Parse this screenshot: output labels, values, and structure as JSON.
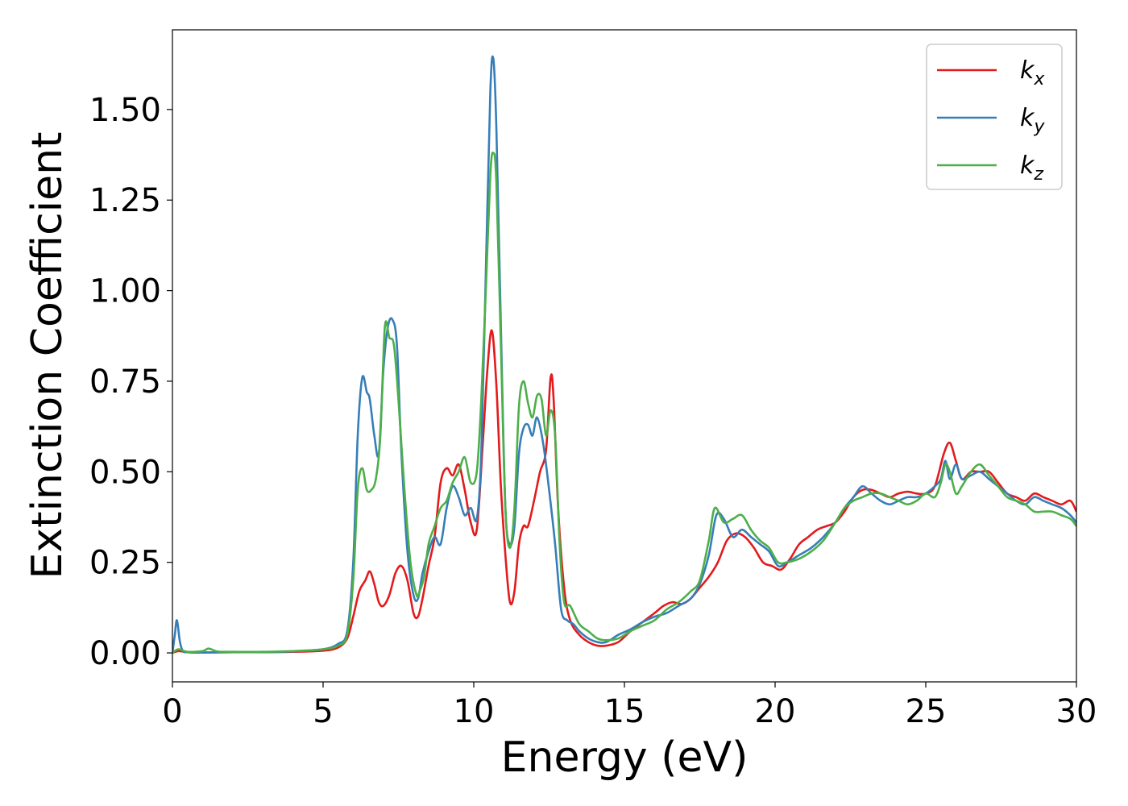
{
  "chart_data": {
    "type": "line",
    "xlabel": "Energy (eV)",
    "ylabel": "Extinction Coefficient",
    "xlim": [
      0,
      30
    ],
    "ylim": [
      -0.08,
      1.72
    ],
    "xticks": [
      "0",
      "5",
      "10",
      "15",
      "20",
      "25",
      "30"
    ],
    "yticks": [
      "0.00",
      "0.25",
      "0.50",
      "0.75",
      "1.00",
      "1.25",
      "1.50"
    ],
    "grid": false,
    "legend_position": "top-right",
    "series": [
      {
        "name": "kx",
        "legend_base": "k",
        "legend_sub": "x",
        "color": "#e41a1c",
        "x": [
          0,
          0.2,
          0.5,
          1,
          2,
          3,
          4,
          5,
          5.5,
          5.8,
          6.0,
          6.2,
          6.4,
          6.55,
          6.7,
          6.85,
          7.0,
          7.2,
          7.4,
          7.6,
          7.8,
          8.0,
          8.15,
          8.3,
          8.5,
          8.7,
          8.9,
          9.1,
          9.3,
          9.5,
          9.7,
          9.9,
          10.1,
          10.3,
          10.45,
          10.6,
          10.75,
          10.9,
          11.05,
          11.2,
          11.35,
          11.5,
          11.65,
          11.8,
          12.0,
          12.2,
          12.4,
          12.55,
          12.65,
          12.8,
          13.0,
          13.2,
          13.5,
          13.8,
          14.1,
          14.4,
          14.8,
          15.2,
          15.6,
          16.0,
          16.3,
          16.6,
          16.9,
          17.2,
          17.5,
          17.8,
          18.1,
          18.4,
          18.7,
          19.0,
          19.3,
          19.6,
          19.9,
          20.2,
          20.5,
          20.8,
          21.1,
          21.4,
          21.7,
          22.0,
          22.3,
          22.6,
          22.9,
          23.2,
          23.5,
          23.8,
          24.1,
          24.4,
          24.7,
          25.0,
          25.3,
          25.6,
          25.8,
          26.0,
          26.2,
          26.5,
          26.8,
          27.1,
          27.4,
          27.7,
          28.0,
          28.3,
          28.6,
          28.9,
          29.2,
          29.5,
          29.8,
          30
        ],
        "values": [
          0.0,
          0.005,
          0.002,
          0.001,
          0.002,
          0.002,
          0.003,
          0.006,
          0.015,
          0.04,
          0.1,
          0.17,
          0.2,
          0.225,
          0.19,
          0.14,
          0.13,
          0.16,
          0.22,
          0.24,
          0.2,
          0.11,
          0.1,
          0.15,
          0.24,
          0.32,
          0.47,
          0.51,
          0.49,
          0.52,
          0.45,
          0.36,
          0.34,
          0.58,
          0.78,
          0.89,
          0.74,
          0.46,
          0.27,
          0.14,
          0.17,
          0.3,
          0.35,
          0.35,
          0.42,
          0.5,
          0.56,
          0.76,
          0.7,
          0.4,
          0.18,
          0.09,
          0.05,
          0.03,
          0.02,
          0.02,
          0.03,
          0.06,
          0.085,
          0.11,
          0.13,
          0.14,
          0.135,
          0.15,
          0.18,
          0.21,
          0.25,
          0.31,
          0.33,
          0.32,
          0.29,
          0.25,
          0.24,
          0.23,
          0.26,
          0.3,
          0.32,
          0.34,
          0.35,
          0.36,
          0.39,
          0.43,
          0.45,
          0.45,
          0.44,
          0.43,
          0.44,
          0.445,
          0.44,
          0.44,
          0.46,
          0.55,
          0.58,
          0.53,
          0.48,
          0.5,
          0.5,
          0.5,
          0.47,
          0.44,
          0.43,
          0.42,
          0.44,
          0.43,
          0.42,
          0.41,
          0.42,
          0.39
        ]
      },
      {
        "name": "ky",
        "legend_base": "k",
        "legend_sub": "y",
        "color": "#377eb8",
        "x": [
          0,
          0.08,
          0.15,
          0.25,
          0.35,
          0.5,
          1,
          2,
          3,
          4,
          5,
          5.5,
          5.8,
          6.0,
          6.15,
          6.3,
          6.45,
          6.55,
          6.7,
          6.85,
          7.0,
          7.15,
          7.3,
          7.45,
          7.6,
          7.8,
          8.0,
          8.15,
          8.3,
          8.5,
          8.7,
          8.9,
          9.1,
          9.3,
          9.5,
          9.7,
          9.9,
          10.1,
          10.25,
          10.4,
          10.55,
          10.65,
          10.75,
          10.9,
          11.05,
          11.2,
          11.35,
          11.5,
          11.65,
          11.8,
          11.95,
          12.1,
          12.3,
          12.5,
          12.7,
          12.9,
          13.1,
          13.3,
          13.5,
          13.8,
          14.1,
          14.4,
          14.8,
          15.2,
          15.6,
          16.0,
          16.4,
          16.8,
          17.2,
          17.5,
          17.8,
          18.05,
          18.3,
          18.6,
          18.9,
          19.2,
          19.5,
          19.8,
          20.1,
          20.4,
          20.8,
          21.2,
          21.6,
          22.0,
          22.3,
          22.6,
          22.9,
          23.2,
          23.5,
          23.8,
          24.1,
          24.4,
          24.7,
          25.0,
          25.3,
          25.5,
          25.65,
          25.8,
          26.0,
          26.2,
          26.5,
          26.8,
          27.1,
          27.4,
          27.7,
          28.0,
          28.3,
          28.6,
          28.9,
          29.2,
          29.5,
          29.8,
          30
        ],
        "values": [
          0.0,
          0.05,
          0.09,
          0.03,
          0.005,
          0.002,
          0.001,
          0.002,
          0.002,
          0.004,
          0.01,
          0.025,
          0.06,
          0.25,
          0.6,
          0.76,
          0.72,
          0.7,
          0.6,
          0.55,
          0.78,
          0.9,
          0.92,
          0.85,
          0.55,
          0.28,
          0.16,
          0.15,
          0.22,
          0.28,
          0.32,
          0.3,
          0.4,
          0.46,
          0.43,
          0.38,
          0.4,
          0.37,
          0.55,
          1.05,
          1.55,
          1.64,
          1.45,
          0.9,
          0.4,
          0.3,
          0.35,
          0.55,
          0.62,
          0.63,
          0.6,
          0.65,
          0.58,
          0.45,
          0.3,
          0.12,
          0.09,
          0.08,
          0.06,
          0.04,
          0.03,
          0.03,
          0.05,
          0.065,
          0.085,
          0.1,
          0.11,
          0.13,
          0.15,
          0.19,
          0.27,
          0.38,
          0.37,
          0.32,
          0.34,
          0.32,
          0.3,
          0.28,
          0.24,
          0.25,
          0.27,
          0.29,
          0.32,
          0.36,
          0.4,
          0.43,
          0.46,
          0.44,
          0.42,
          0.41,
          0.42,
          0.43,
          0.43,
          0.44,
          0.46,
          0.48,
          0.53,
          0.48,
          0.52,
          0.48,
          0.49,
          0.5,
          0.48,
          0.46,
          0.44,
          0.42,
          0.41,
          0.43,
          0.42,
          0.41,
          0.4,
          0.38,
          0.36
        ]
      },
      {
        "name": "kz",
        "legend_base": "k",
        "legend_sub": "z",
        "color": "#4daf4a",
        "x": [
          0,
          0.2,
          0.5,
          1.0,
          1.2,
          1.5,
          2,
          3,
          4,
          5,
          5.5,
          5.8,
          6.0,
          6.15,
          6.3,
          6.45,
          6.6,
          6.75,
          6.9,
          7.05,
          7.2,
          7.35,
          7.5,
          7.7,
          7.9,
          8.1,
          8.2,
          8.35,
          8.5,
          8.7,
          8.9,
          9.1,
          9.3,
          9.5,
          9.7,
          9.9,
          10.1,
          10.25,
          10.4,
          10.55,
          10.65,
          10.75,
          10.9,
          11.05,
          11.2,
          11.35,
          11.5,
          11.65,
          11.8,
          11.95,
          12.1,
          12.25,
          12.4,
          12.55,
          12.7,
          12.85,
          13.0,
          13.2,
          13.5,
          13.8,
          14.1,
          14.4,
          14.8,
          15.2,
          15.6,
          16.0,
          16.4,
          16.8,
          17.2,
          17.5,
          17.8,
          18.0,
          18.3,
          18.6,
          18.9,
          19.2,
          19.5,
          19.8,
          20.1,
          20.4,
          20.8,
          21.2,
          21.6,
          22.0,
          22.3,
          22.6,
          22.9,
          23.2,
          23.5,
          23.8,
          24.1,
          24.4,
          24.7,
          25.0,
          25.3,
          25.5,
          25.65,
          25.8,
          26.0,
          26.2,
          26.5,
          26.8,
          27.1,
          27.4,
          27.7,
          28.0,
          28.3,
          28.6,
          28.9,
          29.2,
          29.5,
          29.8,
          30
        ],
        "values": [
          0.0,
          0.01,
          0.003,
          0.005,
          0.012,
          0.004,
          0.003,
          0.003,
          0.005,
          0.01,
          0.02,
          0.05,
          0.2,
          0.45,
          0.51,
          0.45,
          0.45,
          0.48,
          0.6,
          0.9,
          0.87,
          0.85,
          0.7,
          0.45,
          0.25,
          0.16,
          0.17,
          0.21,
          0.3,
          0.35,
          0.4,
          0.42,
          0.47,
          0.5,
          0.54,
          0.47,
          0.5,
          0.7,
          1.0,
          1.32,
          1.38,
          1.3,
          0.85,
          0.4,
          0.29,
          0.4,
          0.68,
          0.75,
          0.69,
          0.65,
          0.71,
          0.7,
          0.6,
          0.67,
          0.6,
          0.3,
          0.14,
          0.13,
          0.08,
          0.06,
          0.04,
          0.035,
          0.04,
          0.06,
          0.075,
          0.09,
          0.12,
          0.14,
          0.17,
          0.2,
          0.31,
          0.4,
          0.36,
          0.37,
          0.38,
          0.34,
          0.31,
          0.29,
          0.25,
          0.25,
          0.26,
          0.28,
          0.31,
          0.36,
          0.4,
          0.42,
          0.43,
          0.44,
          0.44,
          0.43,
          0.42,
          0.41,
          0.42,
          0.44,
          0.43,
          0.47,
          0.52,
          0.5,
          0.44,
          0.46,
          0.5,
          0.52,
          0.49,
          0.46,
          0.43,
          0.42,
          0.41,
          0.39,
          0.39,
          0.39,
          0.38,
          0.37,
          0.35
        ]
      }
    ]
  }
}
